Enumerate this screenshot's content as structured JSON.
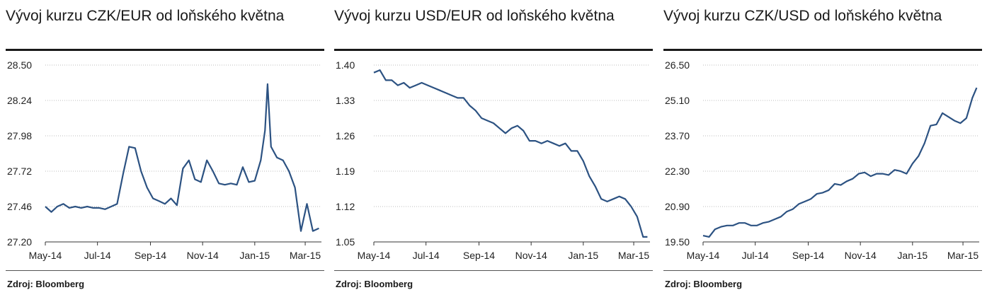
{
  "source": "Zdroj: Bloomberg",
  "series_color": "#2c5282",
  "chart_data": [
    {
      "type": "line",
      "title": "Vývoj kurzu CZK/EUR od loňského května",
      "x_ticks": [
        "May-14",
        "Jul-14",
        "Sep-14",
        "Nov-14",
        "Jan-15",
        "Mar-15"
      ],
      "y_ticks": [
        "28.50",
        "28.24",
        "27.98",
        "27.72",
        "27.46",
        "27.20"
      ],
      "ylim": [
        27.2,
        28.5
      ],
      "grid": true,
      "series": [
        {
          "x": [
            "2014-05-01",
            "2014-05-08",
            "2014-05-15",
            "2014-05-22",
            "2014-05-29",
            "2014-06-05",
            "2014-06-12",
            "2014-06-19",
            "2014-06-26",
            "2014-07-03",
            "2014-07-10",
            "2014-07-17",
            "2014-07-24",
            "2014-07-31",
            "2014-08-07",
            "2014-08-14",
            "2014-08-21",
            "2014-08-28",
            "2014-09-04",
            "2014-09-11",
            "2014-09-18",
            "2014-09-25",
            "2014-10-02",
            "2014-10-09",
            "2014-10-16",
            "2014-10-23",
            "2014-10-30",
            "2014-11-06",
            "2014-11-13",
            "2014-11-20",
            "2014-11-27",
            "2014-12-04",
            "2014-12-11",
            "2014-12-18",
            "2014-12-25",
            "2015-01-01",
            "2015-01-08",
            "2015-01-13",
            "2015-01-16",
            "2015-01-20",
            "2015-01-27",
            "2015-02-03",
            "2015-02-10",
            "2015-02-17",
            "2015-02-24",
            "2015-03-03",
            "2015-03-10",
            "2015-03-17"
          ],
          "values": [
            27.46,
            27.42,
            27.46,
            27.48,
            27.45,
            27.46,
            27.45,
            27.46,
            27.45,
            27.45,
            27.44,
            27.46,
            27.48,
            27.7,
            27.9,
            27.89,
            27.72,
            27.6,
            27.52,
            27.5,
            27.48,
            27.52,
            27.47,
            27.74,
            27.8,
            27.66,
            27.64,
            27.8,
            27.72,
            27.63,
            27.62,
            27.63,
            27.62,
            27.75,
            27.64,
            27.65,
            27.8,
            28.02,
            28.36,
            27.9,
            27.82,
            27.8,
            27.72,
            27.6,
            27.28,
            27.48,
            27.28,
            27.3
          ]
        }
      ]
    },
    {
      "type": "line",
      "title": "Vývoj kurzu USD/EUR od loňského května",
      "x_ticks": [
        "May-14",
        "Jul-14",
        "Sep-14",
        "Nov-14",
        "Jan-15",
        "Mar-15"
      ],
      "y_ticks": [
        "1.40",
        "1.33",
        "1.26",
        "1.19",
        "1.12",
        "1.05"
      ],
      "ylim": [
        1.05,
        1.4
      ],
      "grid": true,
      "series": [
        {
          "x": [
            "2014-05-01",
            "2014-05-08",
            "2014-05-15",
            "2014-05-22",
            "2014-05-29",
            "2014-06-05",
            "2014-06-12",
            "2014-06-19",
            "2014-06-26",
            "2014-07-03",
            "2014-07-10",
            "2014-07-17",
            "2014-07-24",
            "2014-07-31",
            "2014-08-07",
            "2014-08-14",
            "2014-08-21",
            "2014-08-28",
            "2014-09-04",
            "2014-09-11",
            "2014-09-18",
            "2014-09-25",
            "2014-10-02",
            "2014-10-09",
            "2014-10-16",
            "2014-10-23",
            "2014-10-30",
            "2014-11-06",
            "2014-11-13",
            "2014-11-20",
            "2014-11-27",
            "2014-12-04",
            "2014-12-11",
            "2014-12-18",
            "2014-12-25",
            "2015-01-01",
            "2015-01-08",
            "2015-01-15",
            "2015-01-22",
            "2015-01-29",
            "2015-02-05",
            "2015-02-12",
            "2015-02-19",
            "2015-02-26",
            "2015-03-05",
            "2015-03-12",
            "2015-03-17"
          ],
          "values": [
            1.385,
            1.39,
            1.37,
            1.37,
            1.36,
            1.365,
            1.355,
            1.36,
            1.365,
            1.36,
            1.355,
            1.35,
            1.345,
            1.34,
            1.335,
            1.335,
            1.32,
            1.31,
            1.295,
            1.29,
            1.285,
            1.275,
            1.265,
            1.275,
            1.28,
            1.27,
            1.25,
            1.25,
            1.245,
            1.25,
            1.245,
            1.24,
            1.245,
            1.23,
            1.23,
            1.21,
            1.18,
            1.16,
            1.135,
            1.13,
            1.135,
            1.14,
            1.135,
            1.12,
            1.1,
            1.06,
            1.06
          ]
        }
      ]
    },
    {
      "type": "line",
      "title": "Vývoj kurzu CZK/USD od loňského května",
      "x_ticks": [
        "May-14",
        "Jul-14",
        "Sep-14",
        "Nov-14",
        "Jan-15",
        "Mar-15"
      ],
      "y_ticks": [
        "26.50",
        "25.10",
        "23.70",
        "22.30",
        "20.90",
        "19.50"
      ],
      "ylim": [
        19.5,
        26.5
      ],
      "grid": true,
      "series": [
        {
          "x": [
            "2014-05-01",
            "2014-05-08",
            "2014-05-15",
            "2014-05-22",
            "2014-05-29",
            "2014-06-05",
            "2014-06-12",
            "2014-06-19",
            "2014-06-26",
            "2014-07-03",
            "2014-07-10",
            "2014-07-17",
            "2014-07-24",
            "2014-07-31",
            "2014-08-07",
            "2014-08-14",
            "2014-08-21",
            "2014-08-28",
            "2014-09-04",
            "2014-09-11",
            "2014-09-18",
            "2014-09-25",
            "2014-10-02",
            "2014-10-09",
            "2014-10-16",
            "2014-10-23",
            "2014-10-30",
            "2014-11-06",
            "2014-11-13",
            "2014-11-20",
            "2014-11-27",
            "2014-12-04",
            "2014-12-11",
            "2014-12-18",
            "2014-12-25",
            "2015-01-01",
            "2015-01-08",
            "2015-01-15",
            "2015-01-22",
            "2015-01-29",
            "2015-02-05",
            "2015-02-12",
            "2015-02-19",
            "2015-02-26",
            "2015-03-05",
            "2015-03-12",
            "2015-03-17"
          ],
          "values": [
            19.75,
            19.7,
            20.0,
            20.1,
            20.15,
            20.15,
            20.25,
            20.25,
            20.15,
            20.15,
            20.25,
            20.3,
            20.4,
            20.5,
            20.7,
            20.8,
            21.0,
            21.1,
            21.2,
            21.4,
            21.45,
            21.55,
            21.8,
            21.75,
            21.9,
            22.0,
            22.2,
            22.25,
            22.1,
            22.2,
            22.2,
            22.15,
            22.35,
            22.3,
            22.2,
            22.6,
            22.9,
            23.4,
            24.1,
            24.15,
            24.6,
            24.45,
            24.3,
            24.2,
            24.4,
            25.2,
            25.6
          ]
        }
      ]
    }
  ]
}
